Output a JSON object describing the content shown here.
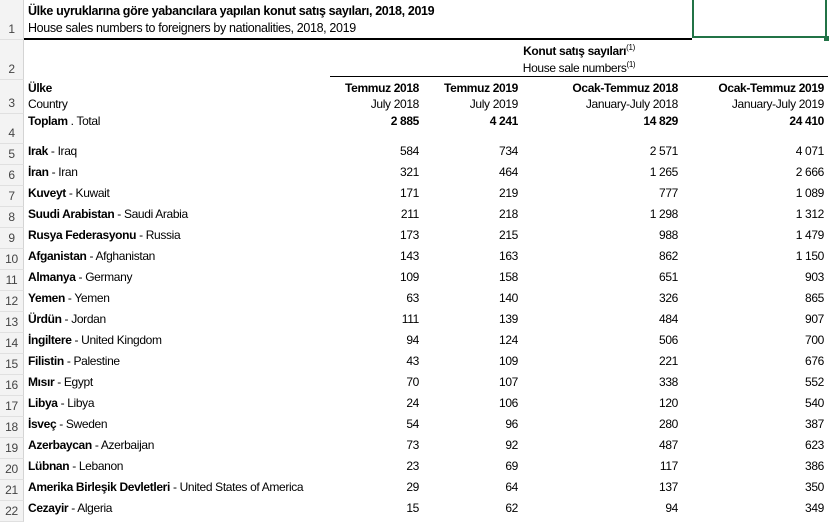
{
  "title": {
    "tr": "Ülke uyruklarına göre yabancılara yapılan konut satış sayıları, 2018, 2019",
    "en": "House sales numbers to foreigners by nationalities, 2018, 2019"
  },
  "group_header": {
    "tr": "Konut satış sayıları",
    "en": "House sale numbers",
    "footnote": "(1)"
  },
  "columns": {
    "country_tr": "Ülke",
    "country_en": "Country",
    "periods": [
      {
        "tr": "Temmuz 2018",
        "en": "July 2018"
      },
      {
        "tr": "Temmuz 2019",
        "en": "July 2019"
      },
      {
        "tr": "Ocak-Temmuz 2018",
        "en": "January-July 2018"
      },
      {
        "tr": "Ocak-Temmuz 2019",
        "en": "January-July 2019"
      }
    ]
  },
  "total": {
    "row": "4",
    "tr": "Toplam",
    "en": "Total",
    "values": [
      "2 885",
      "4 241",
      "14 829",
      "24 410"
    ]
  },
  "row_numbers": [
    "1",
    "2",
    "3"
  ],
  "rows": [
    {
      "row": "5",
      "tr": "Irak",
      "en": "Iraq",
      "values": [
        "584",
        "734",
        "2 571",
        "4 071"
      ]
    },
    {
      "row": "6",
      "tr": "İran",
      "en": "Iran",
      "values": [
        "321",
        "464",
        "1 265",
        "2 666"
      ]
    },
    {
      "row": "7",
      "tr": "Kuveyt",
      "en": "Kuwait",
      "values": [
        "171",
        "219",
        "777",
        "1 089"
      ]
    },
    {
      "row": "8",
      "tr": "Suudi Arabistan",
      "en": "Saudi Arabia",
      "values": [
        "211",
        "218",
        "1 298",
        "1 312"
      ]
    },
    {
      "row": "9",
      "tr": "Rusya Federasyonu",
      "en": "Russia",
      "values": [
        "173",
        "215",
        "988",
        "1 479"
      ]
    },
    {
      "row": "10",
      "tr": "Afganistan",
      "en": "Afghanistan",
      "values": [
        "143",
        "163",
        "862",
        "1 150"
      ]
    },
    {
      "row": "11",
      "tr": "Almanya",
      "en": "Germany",
      "values": [
        "109",
        "158",
        "651",
        "903"
      ]
    },
    {
      "row": "12",
      "tr": "Yemen",
      "en": "Yemen",
      "values": [
        "63",
        "140",
        "326",
        "865"
      ]
    },
    {
      "row": "13",
      "tr": "Ürdün",
      "en": "Jordan",
      "values": [
        "111",
        "139",
        "484",
        "907"
      ]
    },
    {
      "row": "14",
      "tr": "İngiltere",
      "en": "United Kingdom",
      "values": [
        "94",
        "124",
        "506",
        "700"
      ]
    },
    {
      "row": "15",
      "tr": "Filistin",
      "en": "Palestine",
      "values": [
        "43",
        "109",
        "221",
        "676"
      ]
    },
    {
      "row": "16",
      "tr": "Mısır",
      "en": "Egypt",
      "values": [
        "70",
        "107",
        "338",
        "552"
      ]
    },
    {
      "row": "17",
      "tr": "Libya",
      "en": "Libya",
      "values": [
        "24",
        "106",
        "120",
        "540"
      ]
    },
    {
      "row": "18",
      "tr": "İsveç",
      "en": "Sweden",
      "values": [
        "54",
        "96",
        "280",
        "387"
      ]
    },
    {
      "row": "19",
      "tr": "Azerbaycan",
      "en": "Azerbaijan",
      "values": [
        "73",
        "92",
        "487",
        "623"
      ]
    },
    {
      "row": "20",
      "tr": "Lübnan",
      "en": "Lebanon",
      "values": [
        "23",
        "69",
        "117",
        "386"
      ]
    },
    {
      "row": "21",
      "tr": "Amerika Birleşik Devletleri",
      "en": "United States of America",
      "values": [
        "29",
        "64",
        "137",
        "350"
      ]
    },
    {
      "row": "22",
      "tr": "Cezayir",
      "en": "Algeria",
      "values": [
        "15",
        "62",
        "94",
        "349"
      ]
    }
  ],
  "colors": {
    "selection": "#217346",
    "row_header_bg": "#f3f3f3"
  }
}
